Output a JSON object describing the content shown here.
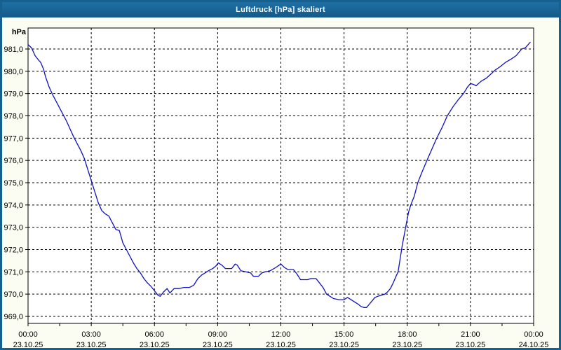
{
  "window": {
    "title": "Luftdruck [hPa] skaliert"
  },
  "chart_data": {
    "type": "line",
    "title": "Luftdruck [hPa] skaliert",
    "ylabel": "hPa",
    "xlabel": "",
    "ylim": [
      968.7,
      981.9
    ],
    "xlim_hours": [
      0,
      24
    ],
    "grid": "dashed-black",
    "legend": "none",
    "colors": {
      "line": "#1010c0",
      "titlebar": "#186397",
      "window_border": "#15608f",
      "window_background": "#fbfdf3",
      "plot_background": "#ffffff",
      "grid_color": "#000000"
    },
    "y_ticks": [
      981,
      980,
      979,
      978,
      977,
      976,
      975,
      974,
      973,
      972,
      971,
      970,
      969
    ],
    "y_tick_labels": [
      "981,0",
      "980,0",
      "979,0",
      "978,0",
      "977,0",
      "976,0",
      "975,0",
      "974,0",
      "973,0",
      "972,0",
      "971,0",
      "970,0",
      "969,0"
    ],
    "x_ticks": [
      {
        "hour": 0,
        "time": "00:00",
        "date": "23.10.25"
      },
      {
        "hour": 3,
        "time": "03:00",
        "date": "23.10.25"
      },
      {
        "hour": 6,
        "time": "06:00",
        "date": "23.10.25"
      },
      {
        "hour": 9,
        "time": "09:00",
        "date": "23.10.25"
      },
      {
        "hour": 12,
        "time": "12:00",
        "date": "23.10.25"
      },
      {
        "hour": 15,
        "time": "15:00",
        "date": "23.10.25"
      },
      {
        "hour": 18,
        "time": "18:00",
        "date": "23.10.25"
      },
      {
        "hour": 21,
        "time": "21:00",
        "date": "23.10.25"
      },
      {
        "hour": 24,
        "time": "00:00",
        "date": "24.10.25"
      }
    ],
    "minor_tick_interval_hours": 1.5,
    "series": [
      {
        "name": "Luftdruck [hPa]",
        "points_min_hpa": [
          [
            0,
            981.2
          ],
          [
            10,
            981.05
          ],
          [
            20,
            980.7
          ],
          [
            30,
            980.5
          ],
          [
            36,
            980.4
          ],
          [
            44,
            980.1
          ],
          [
            50,
            979.75
          ],
          [
            60,
            979.3
          ],
          [
            70,
            978.95
          ],
          [
            80,
            978.65
          ],
          [
            90,
            978.35
          ],
          [
            100,
            978.05
          ],
          [
            110,
            977.75
          ],
          [
            120,
            977.4
          ],
          [
            130,
            977.05
          ],
          [
            140,
            976.75
          ],
          [
            150,
            976.45
          ],
          [
            160,
            976.1
          ],
          [
            170,
            975.6
          ],
          [
            180,
            975.1
          ],
          [
            190,
            974.6
          ],
          [
            200,
            974.1
          ],
          [
            210,
            973.75
          ],
          [
            220,
            973.6
          ],
          [
            230,
            973.5
          ],
          [
            240,
            973.2
          ],
          [
            250,
            972.9
          ],
          [
            260,
            972.85
          ],
          [
            270,
            972.3
          ],
          [
            280,
            972.0
          ],
          [
            290,
            971.7
          ],
          [
            300,
            971.4
          ],
          [
            310,
            971.15
          ],
          [
            320,
            970.95
          ],
          [
            330,
            970.7
          ],
          [
            340,
            970.5
          ],
          [
            350,
            970.35
          ],
          [
            360,
            970.15
          ],
          [
            370,
            969.95
          ],
          [
            376,
            969.9
          ],
          [
            386,
            970.1
          ],
          [
            396,
            970.25
          ],
          [
            404,
            970.05
          ],
          [
            416,
            970.25
          ],
          [
            430,
            970.25
          ],
          [
            444,
            970.3
          ],
          [
            460,
            970.3
          ],
          [
            472,
            970.4
          ],
          [
            484,
            970.7
          ],
          [
            494,
            970.85
          ],
          [
            504,
            970.95
          ],
          [
            514,
            971.05
          ],
          [
            526,
            971.15
          ],
          [
            534,
            971.25
          ],
          [
            542,
            971.4
          ],
          [
            552,
            971.3
          ],
          [
            562,
            971.15
          ],
          [
            580,
            971.15
          ],
          [
            590,
            971.35
          ],
          [
            596,
            971.3
          ],
          [
            606,
            971.05
          ],
          [
            620,
            971.0
          ],
          [
            634,
            970.95
          ],
          [
            642,
            970.8
          ],
          [
            656,
            970.8
          ],
          [
            666,
            970.95
          ],
          [
            676,
            971.0
          ],
          [
            690,
            971.05
          ],
          [
            706,
            971.2
          ],
          [
            720,
            971.35
          ],
          [
            730,
            971.2
          ],
          [
            740,
            971.1
          ],
          [
            756,
            971.1
          ],
          [
            766,
            970.9
          ],
          [
            776,
            970.65
          ],
          [
            796,
            970.65
          ],
          [
            806,
            970.7
          ],
          [
            820,
            970.7
          ],
          [
            830,
            970.5
          ],
          [
            840,
            970.3
          ],
          [
            850,
            970.0
          ],
          [
            860,
            969.9
          ],
          [
            870,
            969.8
          ],
          [
            886,
            969.75
          ],
          [
            900,
            969.75
          ],
          [
            910,
            969.85
          ],
          [
            920,
            969.75
          ],
          [
            930,
            969.65
          ],
          [
            940,
            969.55
          ],
          [
            948,
            969.45
          ],
          [
            956,
            969.4
          ],
          [
            964,
            969.4
          ],
          [
            972,
            969.55
          ],
          [
            980,
            969.7
          ],
          [
            988,
            969.85
          ],
          [
            996,
            969.9
          ],
          [
            1006,
            969.95
          ],
          [
            1016,
            970.0
          ],
          [
            1024,
            970.1
          ],
          [
            1032,
            970.25
          ],
          [
            1040,
            970.5
          ],
          [
            1048,
            970.8
          ],
          [
            1054,
            971.0
          ],
          [
            1060,
            971.6
          ],
          [
            1066,
            972.2
          ],
          [
            1072,
            972.7
          ],
          [
            1078,
            973.2
          ],
          [
            1084,
            973.7
          ],
          [
            1090,
            974.0
          ],
          [
            1100,
            974.4
          ],
          [
            1110,
            975.0
          ],
          [
            1120,
            975.4
          ],
          [
            1136,
            976.0
          ],
          [
            1150,
            976.5
          ],
          [
            1164,
            977.0
          ],
          [
            1180,
            977.5
          ],
          [
            1194,
            978.0
          ],
          [
            1210,
            978.4
          ],
          [
            1224,
            978.7
          ],
          [
            1240,
            979.0
          ],
          [
            1252,
            979.3
          ],
          [
            1260,
            979.45
          ],
          [
            1270,
            979.4
          ],
          [
            1276,
            979.35
          ],
          [
            1290,
            979.55
          ],
          [
            1306,
            979.7
          ],
          [
            1320,
            979.9
          ],
          [
            1330,
            980.05
          ],
          [
            1344,
            980.2
          ],
          [
            1360,
            980.4
          ],
          [
            1376,
            980.55
          ],
          [
            1390,
            980.7
          ],
          [
            1406,
            981.0
          ],
          [
            1416,
            981.05
          ],
          [
            1430,
            981.3
          ]
        ]
      }
    ]
  }
}
